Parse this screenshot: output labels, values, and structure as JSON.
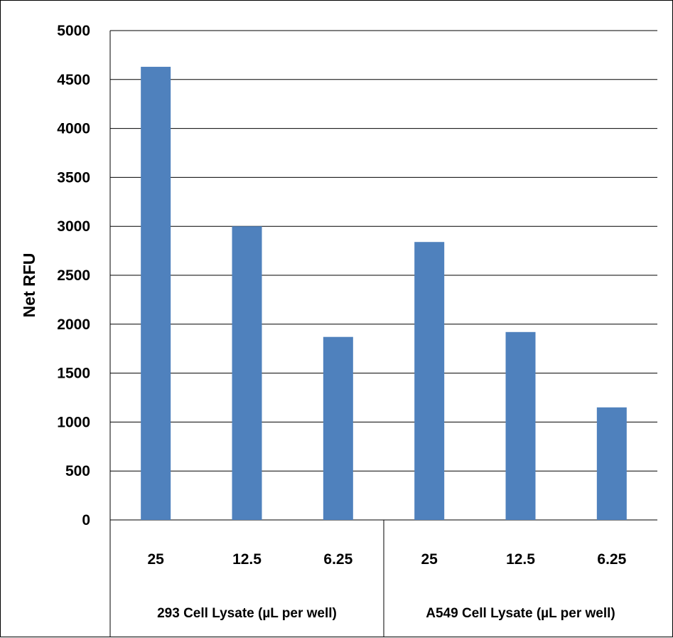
{
  "chart_data": {
    "type": "bar",
    "ylabel": "Net RFU",
    "xlabel": "",
    "ylim": [
      0,
      5000
    ],
    "yticks": [
      0,
      500,
      1000,
      1500,
      2000,
      2500,
      3000,
      3500,
      4000,
      4500,
      5000
    ],
    "grid": true,
    "legend": "none",
    "bar_color": "#4F81BD",
    "groups": [
      {
        "label": "293 Cell Lysate (µL per well)",
        "categories": [
          "25",
          "12.5",
          "6.25"
        ],
        "values": [
          4630,
          3000,
          1870
        ]
      },
      {
        "label": "A549 Cell Lysate (µL per well)",
        "categories": [
          "25",
          "12.5",
          "6.25"
        ],
        "values": [
          2840,
          1920,
          1150
        ]
      }
    ]
  }
}
